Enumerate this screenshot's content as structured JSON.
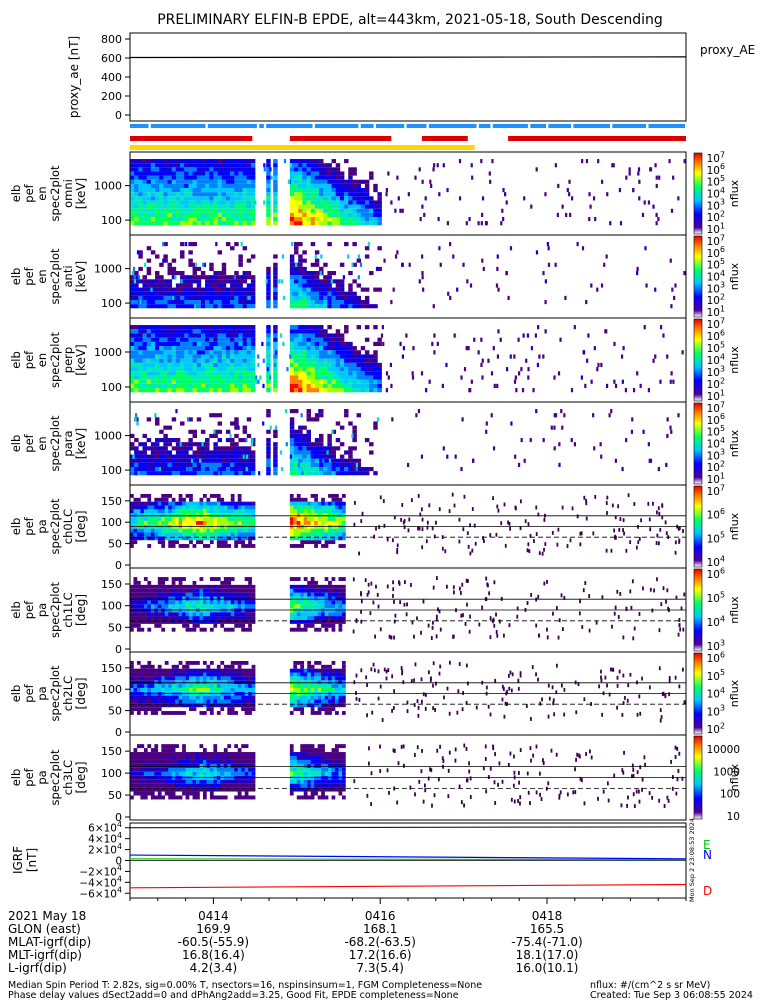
{
  "title": "PRELIMINARY ELFIN-B EPDE, alt=443km, 2021-05-18, South Descending",
  "chart_data": [
    {
      "type": "line",
      "panel": "proxy_ae",
      "ylabel_lines": [
        "proxy_ae",
        "[nT]"
      ],
      "yticks": [
        "800",
        "600",
        "400",
        "200",
        "0"
      ],
      "ylim": [
        0,
        800
      ],
      "series": [
        {
          "name": "proxy_AE",
          "x": [
            "04:13:00",
            "04:19:40"
          ],
          "values": [
            605,
            612
          ]
        }
      ]
    },
    {
      "type": "heatmap",
      "panel": "elb pef en spec2plot omni",
      "ylabel_lines": [
        "elb",
        "pef",
        "en",
        "spec2plot",
        "omni",
        "[keV]"
      ],
      "yticks": [
        "1000",
        "100"
      ],
      "ylog": true,
      "colorbar": {
        "label": "nflux",
        "range": [
          "10^1",
          "10^7"
        ]
      }
    },
    {
      "type": "heatmap",
      "panel": "elb pef en spec2plot anti",
      "ylabel_lines": [
        "elb",
        "pef",
        "en",
        "spec2plot",
        "anti",
        "[keV]"
      ],
      "yticks": [
        "1000",
        "100"
      ],
      "ylog": true,
      "colorbar": {
        "label": "nflux",
        "range": [
          "10^1",
          "10^7"
        ]
      }
    },
    {
      "type": "heatmap",
      "panel": "elb pef en spec2plot perp",
      "ylabel_lines": [
        "elb",
        "pef",
        "en",
        "spec2plot",
        "perp",
        "[keV]"
      ],
      "yticks": [
        "1000",
        "100"
      ],
      "ylog": true,
      "colorbar": {
        "label": "nflux",
        "range": [
          "10^1",
          "10^7"
        ]
      }
    },
    {
      "type": "heatmap",
      "panel": "elb pef en spec2plot para",
      "ylabel_lines": [
        "elb",
        "pef",
        "en",
        "spec2plot",
        "para",
        "[keV]"
      ],
      "yticks": [
        "1000",
        "100"
      ],
      "ylog": true,
      "colorbar": {
        "label": "nflux",
        "range": [
          "10^1",
          "10^7"
        ]
      }
    },
    {
      "type": "heatmap",
      "panel": "elb pef pa spec2plot ch0LC",
      "ylabel_lines": [
        "elb",
        "pef",
        "pa",
        "spec2plot",
        "ch0LC",
        "[deg]"
      ],
      "yticks": [
        "150",
        "100",
        "50",
        "0"
      ],
      "ylim": [
        0,
        180
      ],
      "colorbar": {
        "label": "nflux",
        "range": [
          "10^4",
          "10^7"
        ]
      }
    },
    {
      "type": "heatmap",
      "panel": "elb pef pa spec2plot ch1LC",
      "ylabel_lines": [
        "elb",
        "pef",
        "pa",
        "spec2plot",
        "ch1LC",
        "[deg]"
      ],
      "yticks": [
        "150",
        "100",
        "50",
        "0"
      ],
      "ylim": [
        0,
        180
      ],
      "colorbar": {
        "label": "nflux",
        "range": [
          "10^3",
          "10^6"
        ]
      }
    },
    {
      "type": "heatmap",
      "panel": "elb pef pa spec2plot ch2LC",
      "ylabel_lines": [
        "elb",
        "pef",
        "pa",
        "spec2plot",
        "ch2LC",
        "[deg]"
      ],
      "yticks": [
        "150",
        "100",
        "50",
        "0"
      ],
      "ylim": [
        0,
        180
      ],
      "colorbar": {
        "label": "nflux",
        "range": [
          "10^2",
          "10^6"
        ]
      }
    },
    {
      "type": "heatmap",
      "panel": "elb pef pa spec2plot ch3LC",
      "ylabel_lines": [
        "elb",
        "pef",
        "pa",
        "spec2plot",
        "ch3LC",
        "[deg]"
      ],
      "yticks": [
        "150",
        "100",
        "50",
        "0"
      ],
      "ylim": [
        0,
        180
      ],
      "colorbar": {
        "label": "nflux",
        "ticks": [
          "10000",
          "1000",
          "100",
          "10"
        ]
      }
    },
    {
      "type": "line",
      "panel": "IGRF",
      "ylabel_lines": [
        "IGRF",
        "[nT]"
      ],
      "yticks": [
        "6×10^4",
        "4×10^4",
        "2×10^4",
        "0",
        "−2×10^4",
        "−4×10^4",
        "−6×10^4"
      ],
      "ylim": [
        -65000,
        65000
      ],
      "series": [
        {
          "name": "E",
          "color": "#00cc00",
          "x": [
            "04:13:00",
            "04:19:40"
          ],
          "values": [
            3000,
            1500
          ]
        },
        {
          "name": "N",
          "color": "#0000ff",
          "x": [
            "04:13:00",
            "04:19:40"
          ],
          "values": [
            10000,
            3000
          ]
        },
        {
          "name": "D",
          "color": "#ff0000",
          "x": [
            "04:13:00",
            "04:19:40"
          ],
          "values": [
            -50000,
            -44000
          ]
        }
      ],
      "side_note": "Mon Sep 2 23:08:53 2024"
    }
  ],
  "x_axis": {
    "date": "2021 May 18",
    "ticks": [
      "0414",
      "0416",
      "0418"
    ],
    "rows": [
      {
        "label": "GLON (east)",
        "values": [
          "169.9",
          "168.1",
          "165.5"
        ]
      },
      {
        "label": "MLAT-igrf(dip)",
        "values": [
          "-60.5(-55.9)",
          "-68.2(-63.5)",
          "-75.4(-71.0)"
        ]
      },
      {
        "label": "MLT-igrf(dip)",
        "values": [
          "16.8(16.4)",
          "17.2(16.6)",
          "18.1(17.0)"
        ]
      },
      {
        "label": "L-igrf(dip)",
        "values": [
          "4.2(3.4)",
          "7.3(5.4)",
          "16.0(10.1)"
        ]
      }
    ]
  },
  "footer": {
    "line1": "Median Spin Period T: 2.82s, sig=0.00% T, nsectors=16, nspinsinsum=1, FGM Completeness=None",
    "line2": "Phase delay values dSect2add=0 and dPhAng2add=3.25, Good Fit, EPDE completeness=None",
    "units": "nflux: #/(cm^2 s sr MeV)",
    "created": "Created: Tue Sep  3 06:08:55 2024"
  },
  "colors": {
    "data_red": "#dd0000",
    "data_blue": "#1e90ff",
    "day_yellow": "#ffd700",
    "spectrum": [
      "#4b0082",
      "#0000ff",
      "#00bfff",
      "#00ff80",
      "#ffff00",
      "#ff8000",
      "#ff0000"
    ]
  }
}
